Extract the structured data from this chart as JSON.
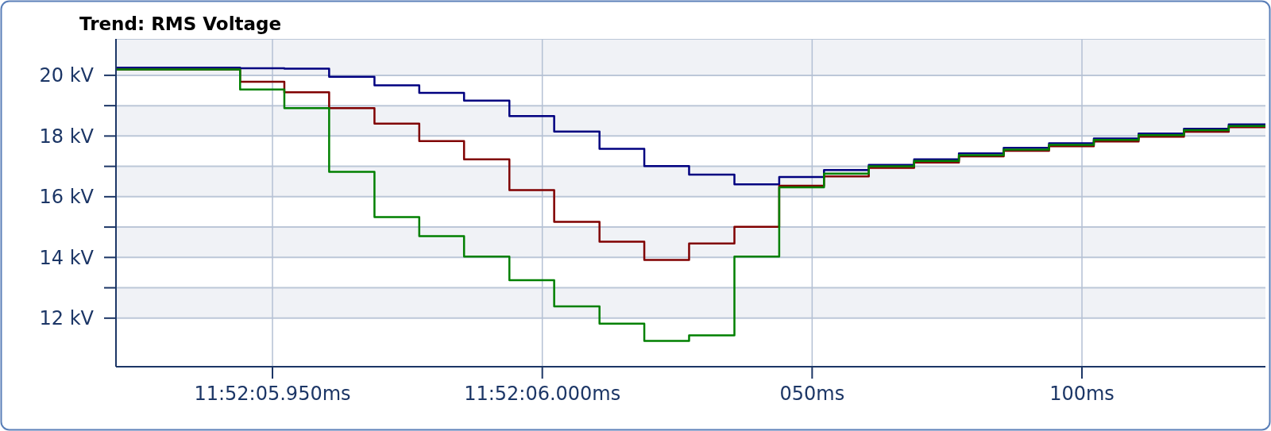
{
  "chart_data": {
    "type": "step",
    "title": "Trend: RMS Voltage",
    "x": [
      -79,
      -56,
      -47.8,
      -39.5,
      -31.1,
      -22.8,
      -14.5,
      -6.1,
      2.2,
      10.6,
      18.9,
      27.2,
      35.6,
      43.9,
      52.2,
      60.5,
      68.9,
      77.2,
      85.5,
      93.9,
      102.2,
      110.5,
      118.9,
      127.2,
      134
    ],
    "series": [
      {
        "color": "#000080",
        "values": [
          20.25,
          20.23,
          20.22,
          19.95,
          19.67,
          19.42,
          19.17,
          18.66,
          18.15,
          17.58,
          17.01,
          16.73,
          16.41,
          16.65,
          16.88,
          17.05,
          17.23,
          17.43,
          17.61,
          17.76,
          17.92,
          18.08,
          18.24,
          18.38,
          18.38
        ]
      },
      {
        "color": "#800000",
        "values": [
          20.19,
          19.79,
          19.44,
          18.92,
          18.41,
          17.83,
          17.23,
          16.22,
          15.17,
          14.52,
          13.92,
          14.46,
          15.01,
          16.36,
          16.67,
          16.95,
          17.13,
          17.33,
          17.51,
          17.66,
          17.82,
          17.98,
          18.14,
          18.29,
          18.29
        ]
      },
      {
        "color": "#008000",
        "values": [
          20.19,
          19.53,
          18.92,
          16.82,
          15.33,
          14.7,
          14.03,
          13.25,
          12.39,
          11.82,
          11.25,
          11.43,
          14.03,
          16.31,
          16.76,
          17.0,
          17.18,
          17.37,
          17.55,
          17.71,
          17.87,
          18.03,
          18.19,
          18.33,
          18.33
        ]
      }
    ],
    "xlim": [
      -79,
      134
    ],
    "xticks": [
      {
        "value": -50,
        "label": "11:52:05.950ms"
      },
      {
        "value": 0,
        "label": "11:52:06.000ms"
      },
      {
        "value": 50,
        "label": "050ms"
      },
      {
        "value": 100,
        "label": "100ms"
      }
    ],
    "ylim": [
      10.4,
      21.2
    ],
    "yticks": [
      {
        "value": 12,
        "label": "12 kV"
      },
      {
        "value": 13,
        "label": null
      },
      {
        "value": 14,
        "label": "14 kV"
      },
      {
        "value": 15,
        "label": null
      },
      {
        "value": 16,
        "label": "16 kV"
      },
      {
        "value": 17,
        "label": null
      },
      {
        "value": 18,
        "label": "18 kV"
      },
      {
        "value": 19,
        "label": null
      },
      {
        "value": 20,
        "label": "20 kV"
      }
    ],
    "grid": true
  }
}
